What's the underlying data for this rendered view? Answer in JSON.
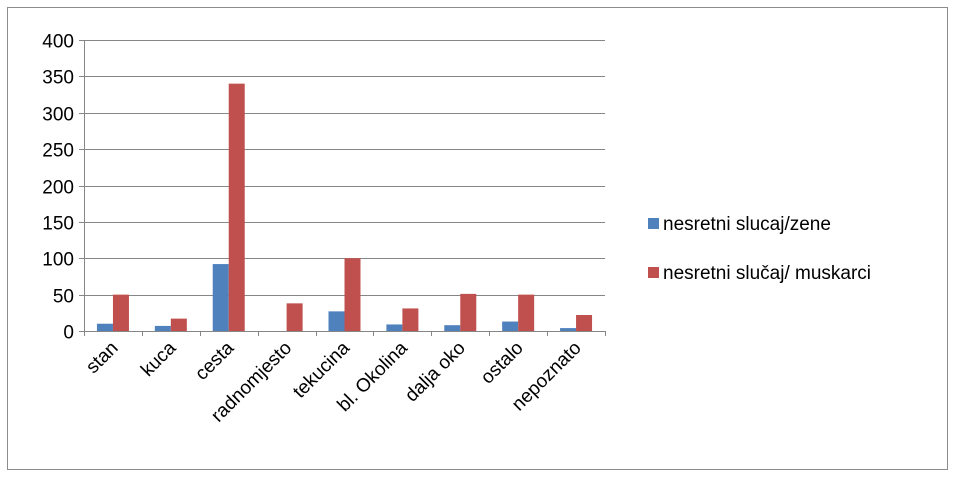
{
  "chart_data": {
    "type": "bar",
    "categories": [
      "stan",
      "kuca",
      "cesta",
      "radnomjesto",
      "tekucina",
      "bl. Okolina",
      "dalja oko",
      "ostalo",
      "nepoznato"
    ],
    "series": [
      {
        "name": "nesretni slucaj/zene",
        "color": "#4f81bd",
        "values": [
          10,
          7,
          92,
          0,
          27,
          9,
          8,
          13,
          4
        ]
      },
      {
        "name": "nesretni slučaj/ muskarci",
        "color": "#c0504d",
        "values": [
          50,
          17,
          340,
          38,
          100,
          31,
          51,
          50,
          22
        ]
      }
    ],
    "ylim": [
      0,
      400
    ],
    "yticks": [
      0,
      50,
      100,
      150,
      200,
      250,
      300,
      350,
      400
    ],
    "grid": true,
    "legend_position": "right"
  }
}
